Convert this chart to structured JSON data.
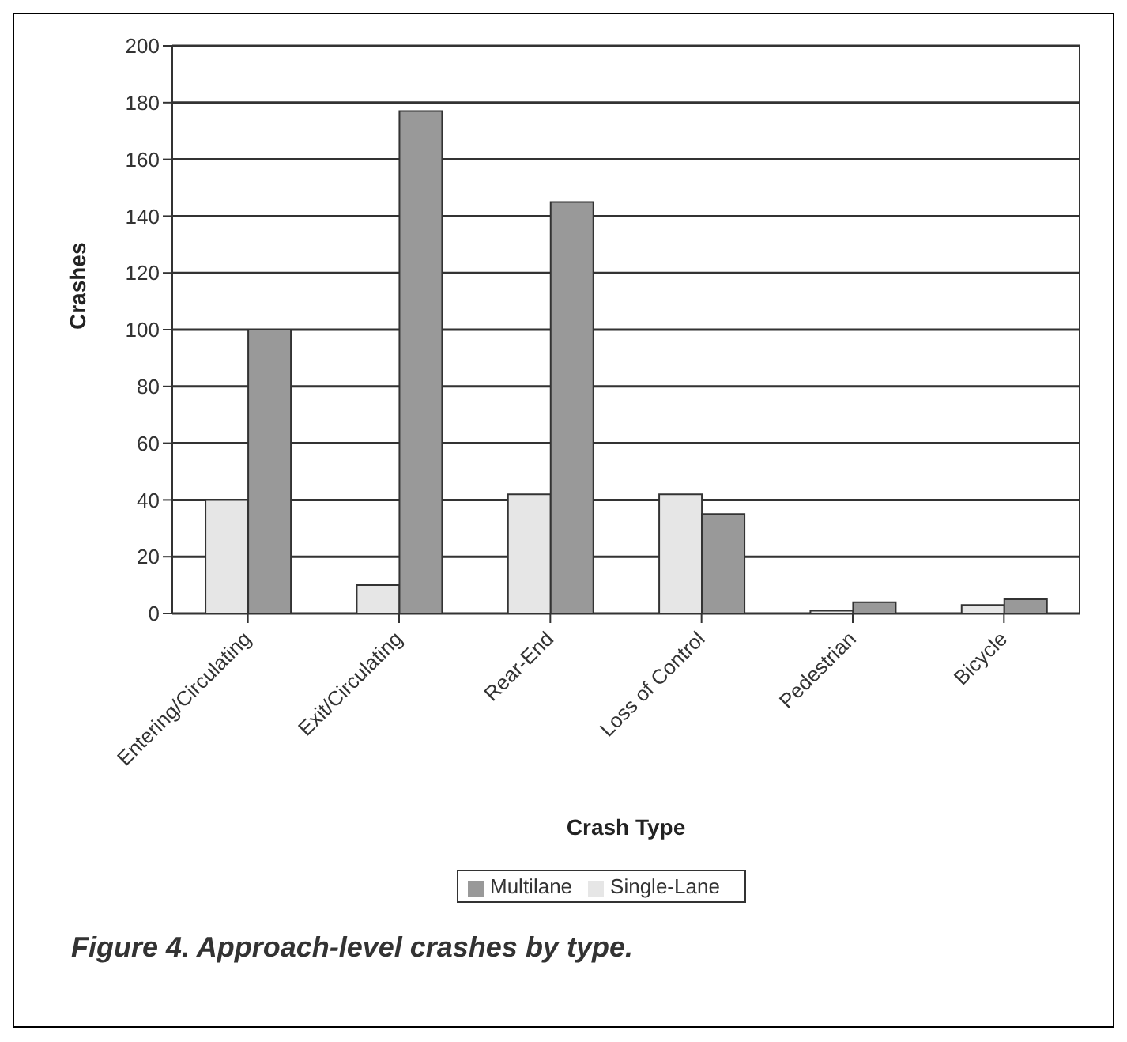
{
  "chart_data": {
    "type": "bar",
    "title": "Figure 4. Approach-level crashes by type.",
    "xlabel": "Crash Type",
    "ylabel": "Crashes",
    "categories": [
      "Entering/Circulating",
      "Exit/Circulating",
      "Rear-End",
      "Loss of Control",
      "Pedestrian",
      "Bicycle"
    ],
    "series": [
      {
        "name": "Single-Lane",
        "color": "#e6e6e6",
        "values": [
          40,
          10,
          42,
          42,
          1,
          3
        ]
      },
      {
        "name": "Multilane",
        "color": "#999999",
        "values": [
          100,
          177,
          145,
          35,
          4,
          5
        ]
      }
    ],
    "ylim": [
      0,
      200
    ],
    "yticks": [
      0,
      20,
      40,
      60,
      80,
      100,
      120,
      140,
      160,
      180,
      200
    ],
    "grid": "y",
    "legend": "bottom"
  }
}
